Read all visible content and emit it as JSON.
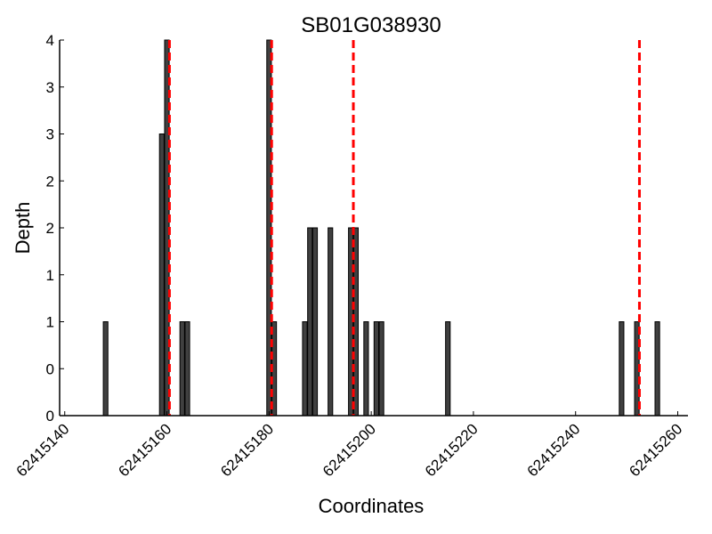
{
  "chart_data": {
    "type": "bar",
    "title": "SB01G038930",
    "xlabel": "Coordinates",
    "ylabel": "Depth",
    "xlim": [
      62415139,
      62415262
    ],
    "ylim": [
      0,
      4
    ],
    "xticks": [
      62415140,
      62415160,
      62415180,
      62415200,
      62415220,
      62415240,
      62415260
    ],
    "xtick_labels": [
      "62415140",
      "62415160",
      "62415180",
      "62415200",
      "62415220",
      "62415240",
      "62415260"
    ],
    "yticks": [
      0,
      0.5,
      1,
      1.5,
      2,
      2.5,
      3,
      3.5,
      4
    ],
    "ytick_labels": [
      "0",
      "0",
      "1",
      "1",
      "2",
      "2",
      "3",
      "3",
      "4"
    ],
    "bar_color": "#404040",
    "marker_color": "#ff0000",
    "grid": false,
    "bars": [
      {
        "x": 62415148,
        "depth": 1
      },
      {
        "x": 62415159,
        "depth": 3
      },
      {
        "x": 62415160,
        "depth": 4
      },
      {
        "x": 62415163,
        "depth": 1
      },
      {
        "x": 62415164,
        "depth": 1
      },
      {
        "x": 62415180,
        "depth": 4
      },
      {
        "x": 62415181,
        "depth": 1
      },
      {
        "x": 62415187,
        "depth": 1
      },
      {
        "x": 62415188,
        "depth": 2
      },
      {
        "x": 62415189,
        "depth": 2
      },
      {
        "x": 62415192,
        "depth": 2
      },
      {
        "x": 62415196,
        "depth": 2
      },
      {
        "x": 62415197,
        "depth": 2
      },
      {
        "x": 62415199,
        "depth": 1
      },
      {
        "x": 62415201,
        "depth": 1
      },
      {
        "x": 62415202,
        "depth": 1
      },
      {
        "x": 62415215,
        "depth": 1
      },
      {
        "x": 62415249,
        "depth": 1
      },
      {
        "x": 62415252,
        "depth": 1
      },
      {
        "x": 62415256,
        "depth": 1
      }
    ],
    "markers": [
      62415160.5,
      62415180.5,
      62415196.5,
      62415252.5
    ]
  }
}
